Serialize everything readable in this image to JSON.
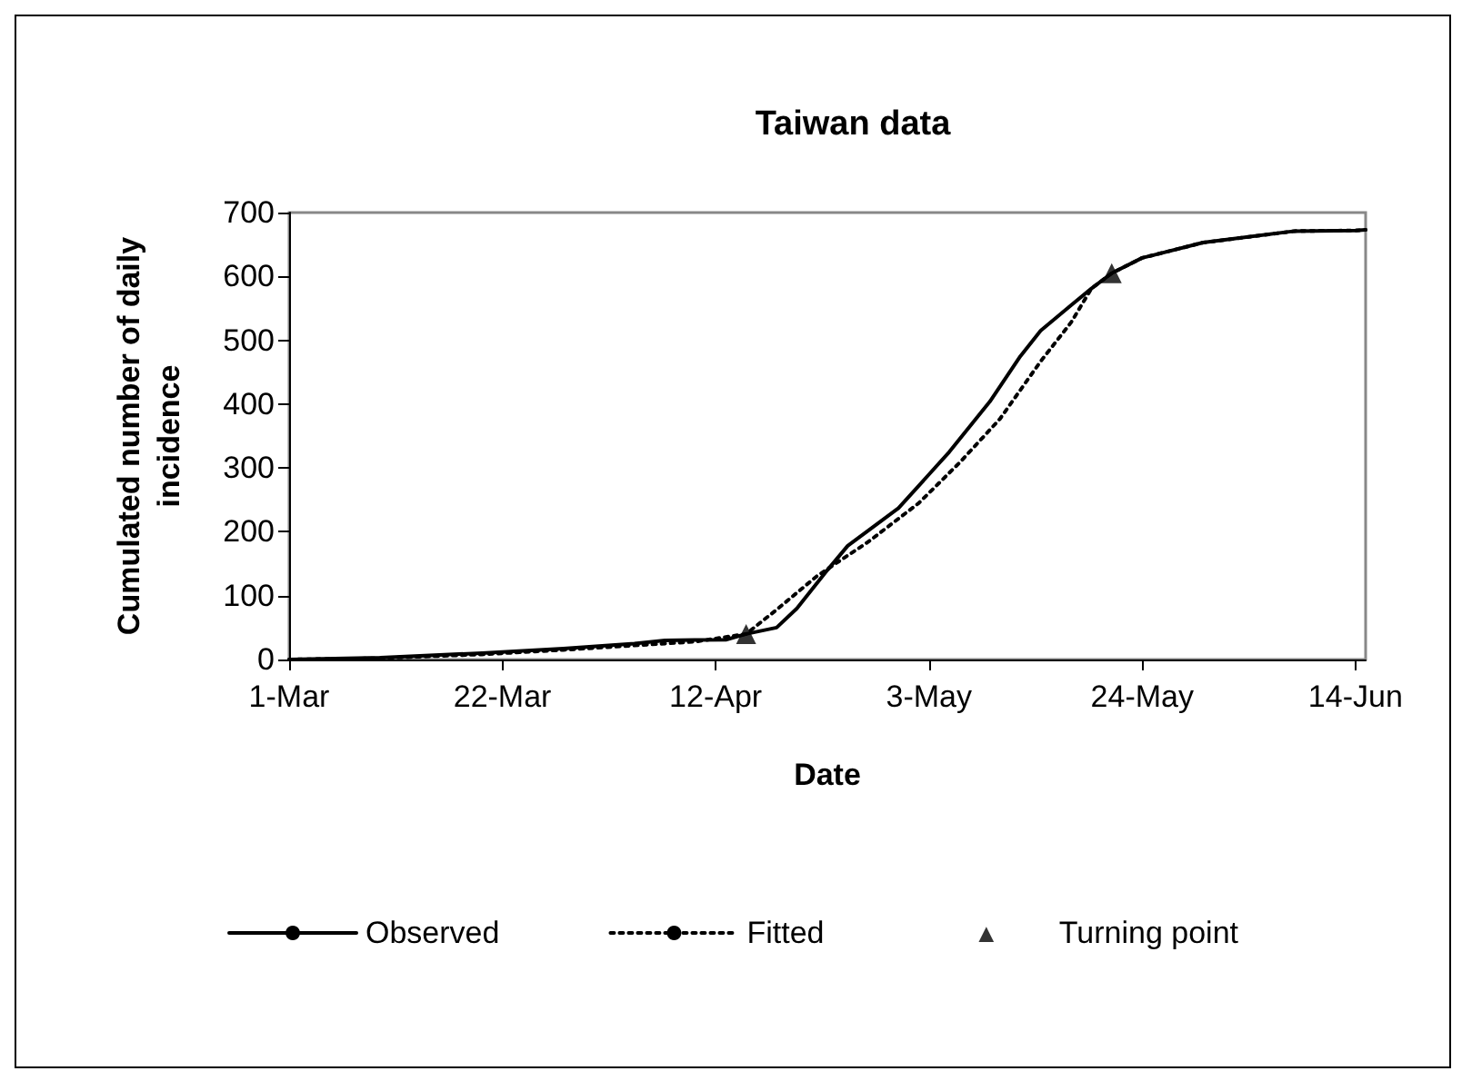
{
  "chart_data": {
    "type": "line",
    "title": "Taiwan data",
    "xlabel": "Date",
    "ylabel": "Cumulated number of daily incidence",
    "xlim": [
      "--03-01",
      "--06-15"
    ],
    "xticks": [
      {
        "value": "--03-01",
        "label": "1-Mar"
      },
      {
        "value": "--03-22",
        "label": "22-Mar"
      },
      {
        "value": "--04-12",
        "label": "12-Apr"
      },
      {
        "value": "--05-03",
        "label": "3-May"
      },
      {
        "value": "--05-24",
        "label": "24-May"
      },
      {
        "value": "--06-14",
        "label": "14-Jun"
      }
    ],
    "ylim": [
      0,
      700
    ],
    "yticks": [
      0,
      100,
      200,
      300,
      400,
      500,
      600,
      700
    ],
    "grid": false,
    "legend": "bottom",
    "series": [
      {
        "name": "Observed",
        "color": "#000000",
        "line_style": "solid",
        "marker": "none",
        "x": [
          "--03-01",
          "--03-10",
          "--03-20",
          "--03-28",
          "--04-04",
          "--04-07",
          "--04-13",
          "--04-15",
          "--04-18",
          "--04-20",
          "--04-23",
          "--04-25",
          "--04-30",
          "--05-05",
          "--05-09",
          "--05-12",
          "--05-14",
          "--05-17",
          "--05-19",
          "--05-21",
          "--05-24",
          "--05-30",
          "--06-08",
          "--06-14",
          "--06-15"
        ],
        "values": [
          0,
          3,
          10,
          17,
          25,
          30,
          31,
          40,
          50,
          80,
          140,
          178,
          237,
          325,
          404,
          475,
          515,
          555,
          581,
          605,
          629,
          653,
          671,
          672,
          673
        ]
      },
      {
        "name": "Fitted",
        "color": "#000000",
        "line_style": "dotted",
        "marker": "none",
        "x": [
          "--03-01",
          "--03-10",
          "--03-20",
          "--03-28",
          "--04-04",
          "--04-10",
          "--04-15",
          "--04-18",
          "--04-22",
          "--04-27",
          "--05-02",
          "--05-06",
          "--05-10",
          "--05-14",
          "--05-17",
          "--05-19",
          "--05-21",
          "--05-24",
          "--05-30",
          "--06-08",
          "--06-14",
          "--06-15"
        ],
        "values": [
          0,
          2,
          8,
          15,
          22,
          28,
          40,
          78,
          131,
          184,
          245,
          308,
          377,
          467,
          528,
          581,
          605,
          629,
          653,
          671,
          672,
          673
        ]
      },
      {
        "name": "Turning point",
        "type": "scatter",
        "color": "#000000",
        "marker": "triangle",
        "x": [
          "--04-15",
          "--05-21"
        ],
        "values": [
          40,
          605
        ]
      }
    ]
  }
}
